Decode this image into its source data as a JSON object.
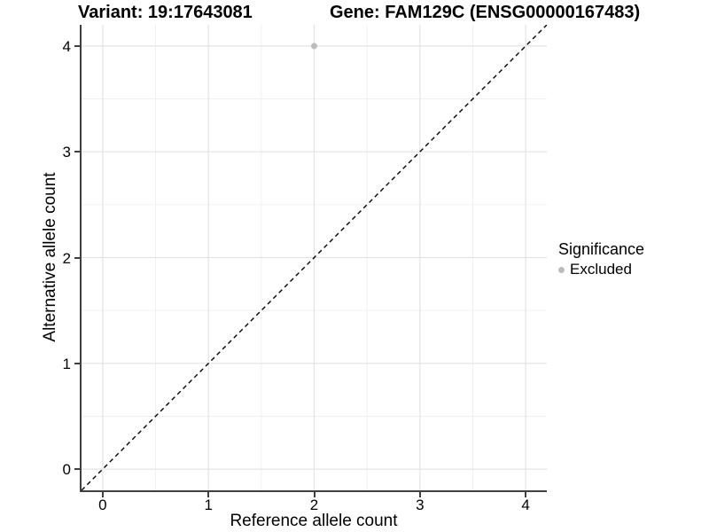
{
  "chart_data": {
    "type": "scatter",
    "titles": {
      "left": "Variant: 19:17643081",
      "right": "Gene: FAM129C (ENSG00000167483)"
    },
    "xlabel": "Reference allele count",
    "ylabel": "Alternative allele count",
    "xlim": [
      -0.2,
      4.2
    ],
    "ylim": [
      -0.2,
      4.2
    ],
    "x_ticks": [
      0,
      1,
      2,
      3,
      4
    ],
    "y_ticks": [
      0,
      1,
      2,
      3,
      4
    ],
    "grid": {
      "major": true,
      "minor": true,
      "minor_at_midpoints": true,
      "major_color": "#e3e3e3",
      "minor_color": "#f0f0f0"
    },
    "axis_color": "#404040",
    "reference_line": {
      "type": "identity",
      "style": "dashed",
      "color": "#000000"
    },
    "series": [
      {
        "name": "Excluded",
        "color": "#bcbcbc",
        "points": [
          {
            "x": 2,
            "y": 4
          }
        ]
      }
    ],
    "legend": {
      "title": "Significance",
      "position": "right",
      "items": [
        {
          "label": "Excluded",
          "color": "#bcbcbc"
        }
      ]
    }
  }
}
